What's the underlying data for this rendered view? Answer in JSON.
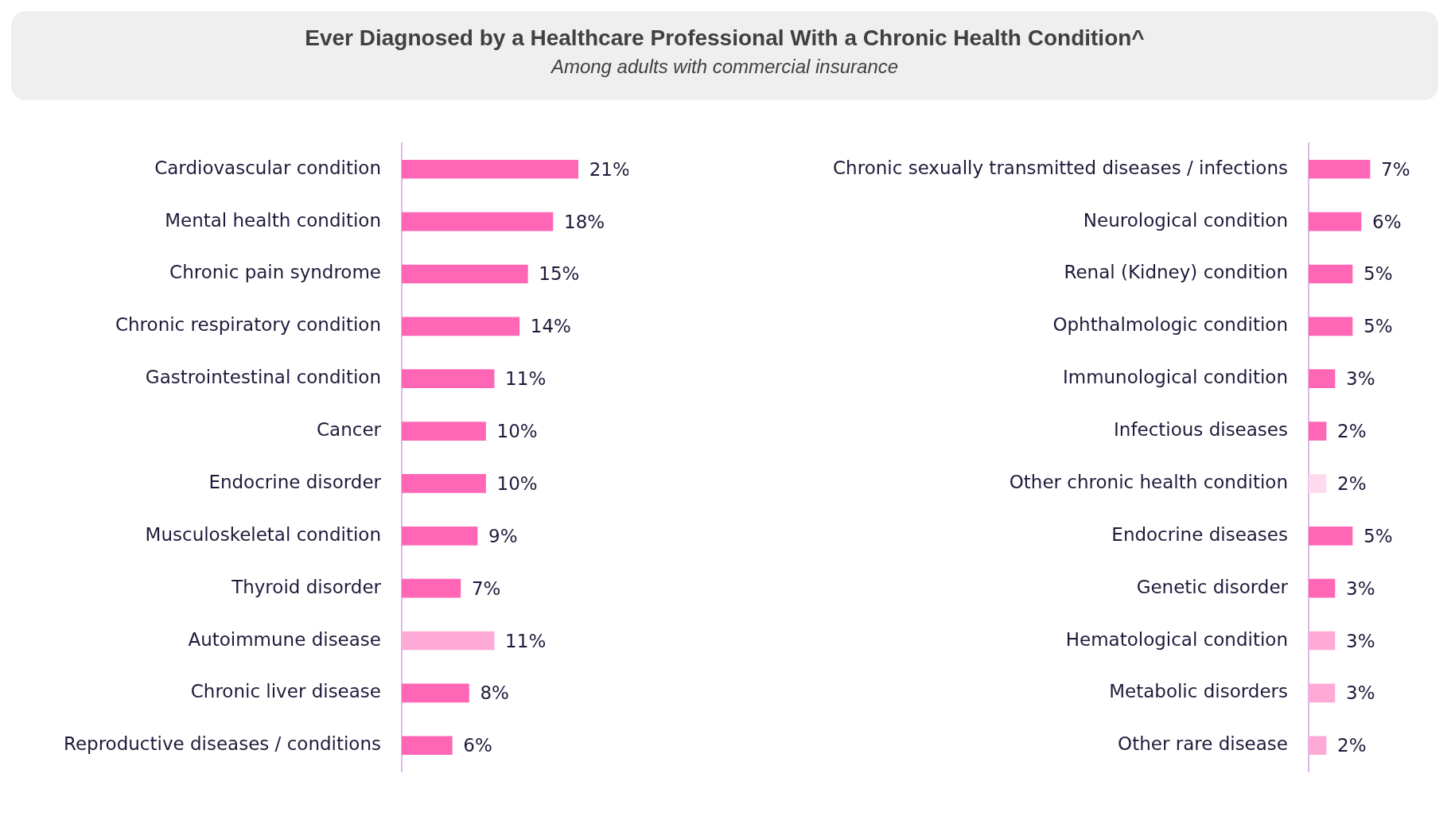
{
  "chart_data": [
    {
      "type": "bar",
      "orientation": "horizontal",
      "title": "Ever Diagnosed by a Healthcare Professional With a Chronic Health Condition^",
      "subtitle": "Among adults with commercial insurance",
      "categories": [
        "Cardiovascular condition",
        "Mental health condition",
        "Chronic pain syndrome",
        "Chronic respiratory condition",
        "Gastrointestinal condition",
        "Cancer",
        "Endocrine disorder",
        "Musculoskeletal condition",
        "Thyroid disorder",
        "Autoimmune disease",
        "Chronic liver disease",
        "Reproductive diseases / conditions"
      ],
      "values": [
        21,
        18,
        15,
        14,
        11,
        10,
        10,
        9,
        7,
        11,
        8,
        6
      ],
      "value_labels": [
        "21%",
        "18%",
        "15%",
        "14%",
        "11%",
        "10%",
        "10%",
        "9%",
        "7%",
        "11%",
        "8%",
        "6%"
      ],
      "colors": [
        "#ff66b5",
        "#ff66b5",
        "#ff66b5",
        "#ff66b5",
        "#ff66b5",
        "#ff66b5",
        "#ff66b5",
        "#ff66b5",
        "#ff66b5",
        "#ffaad6",
        "#ff66b5",
        "#ff66b5"
      ]
    },
    {
      "type": "bar",
      "orientation": "horizontal",
      "categories": [
        "Chronic sexually transmitted diseases / infections",
        "Neurological condition",
        "Renal (Kidney) condition",
        "Ophthalmologic condition",
        "Immunological condition",
        "Infectious diseases",
        "Other chronic health condition",
        "Endocrine diseases",
        "Genetic disorder",
        "Hematological condition",
        "Metabolic disorders",
        "Other rare disease"
      ],
      "values": [
        7,
        6,
        5,
        5,
        3,
        2,
        2,
        5,
        3,
        3,
        3,
        2
      ],
      "value_labels": [
        "7%",
        "6%",
        "5%",
        "5%",
        "3%",
        "2%",
        "2%",
        "5%",
        "3%",
        "3%",
        "3%",
        "2%"
      ],
      "colors": [
        "#ff66b5",
        "#ff66b5",
        "#ff66b5",
        "#ff66b5",
        "#ff66b5",
        "#ff66b5",
        "#ffd9ed",
        "#ff66b5",
        "#ff66b5",
        "#ffaad6",
        "#ffaad6",
        "#ffaad6"
      ]
    }
  ]
}
